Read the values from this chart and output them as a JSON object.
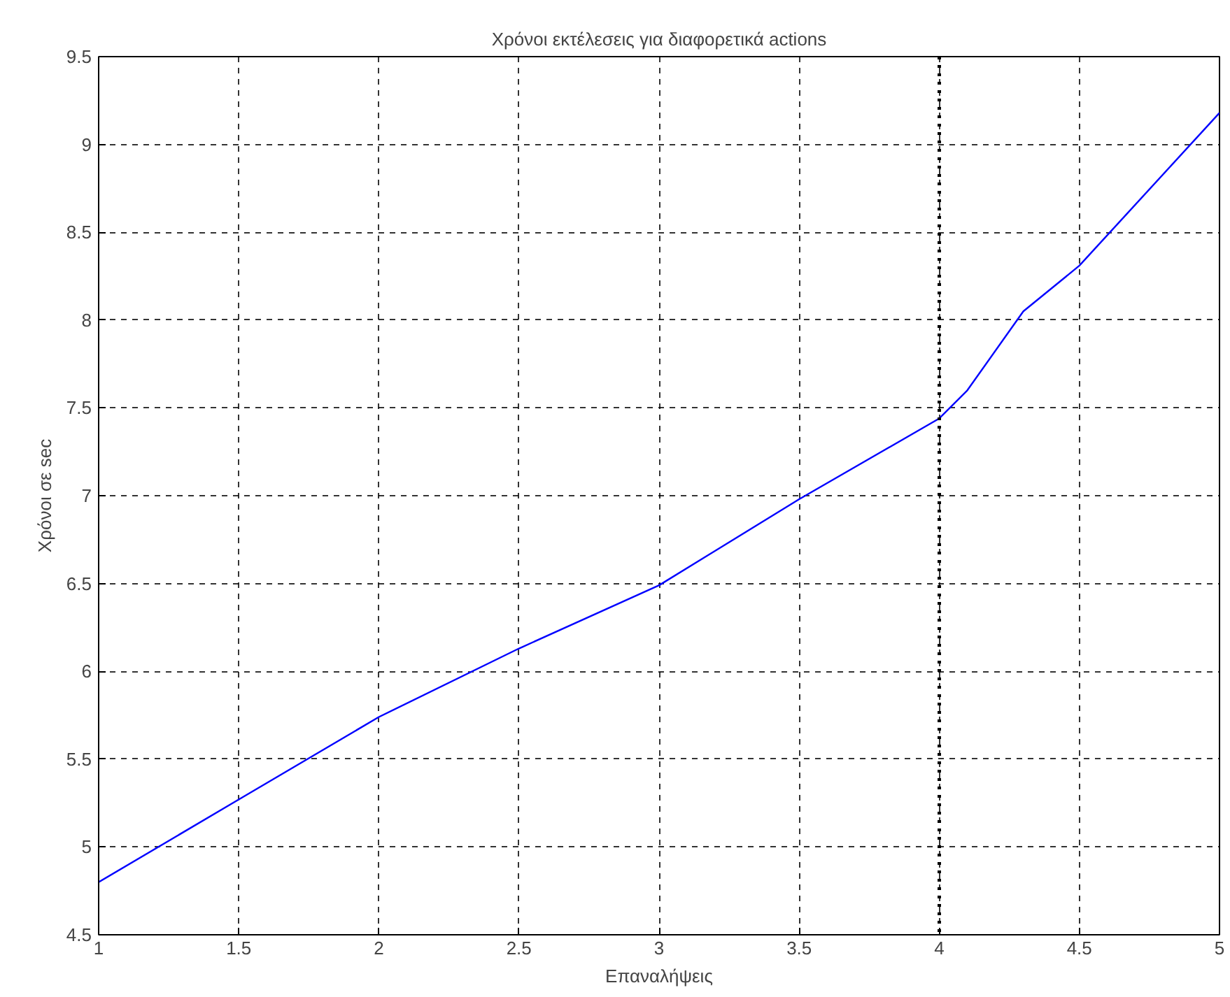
{
  "chart_data": {
    "type": "line",
    "title": "Χρόνοι εκτέλεσεις για διαφορετικά actions",
    "xlabel": "Επαναλήψεις",
    "ylabel": "Χρόνοι σε sec",
    "x": [
      1,
      1.5,
      2,
      2.5,
      3,
      3.5,
      4,
      4.1,
      4.3,
      4.5,
      5
    ],
    "series": [
      {
        "color": "#0000ff",
        "values": [
          4.8,
          5.27,
          5.74,
          6.13,
          6.49,
          6.98,
          7.44,
          7.6,
          8.05,
          8.31,
          9.18
        ]
      }
    ],
    "xlim": [
      1,
      5
    ],
    "xticks": [
      1,
      1.5,
      2,
      2.5,
      3,
      3.5,
      4,
      4.5,
      5
    ],
    "ylim": [
      4.5,
      9.5
    ],
    "yticks": [
      4.5,
      5,
      5.5,
      6,
      6.5,
      7,
      7.5,
      8,
      8.5,
      9,
      9.5
    ],
    "grid": true,
    "marker": "none",
    "line_style": "solid",
    "ref_lines": [
      {
        "axis": "x",
        "value": 4,
        "line_style": "dotted",
        "color": "#000000"
      }
    ]
  }
}
